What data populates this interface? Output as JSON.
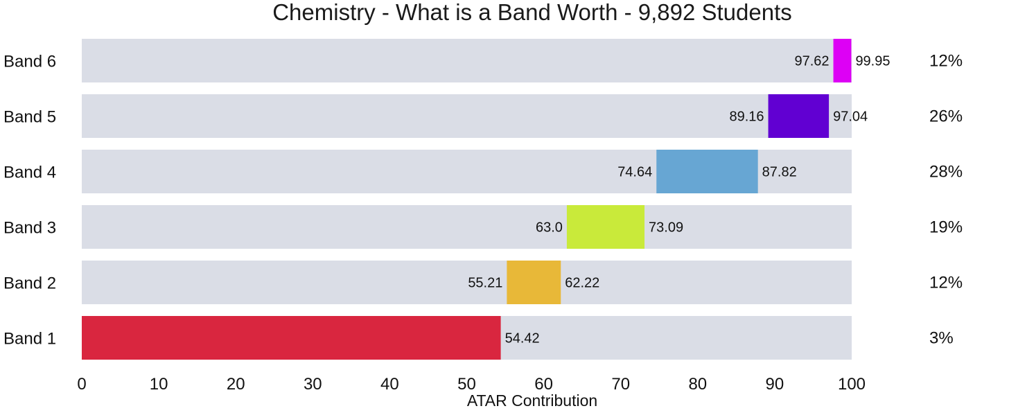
{
  "chart_data": {
    "type": "bar",
    "title": "Chemistry - What is a Band Worth - 9,892 Students",
    "xlabel": "ATAR Contribution",
    "ylabel": "",
    "xlim": [
      0,
      100
    ],
    "x_ticks": [
      "0",
      "10",
      "20",
      "30",
      "40",
      "50",
      "60",
      "70",
      "80",
      "90",
      "100"
    ],
    "grid": false,
    "legend": "none",
    "track_color": "#dadde6",
    "categories": [
      "Band 6",
      "Band 5",
      "Band 4",
      "Band 3",
      "Band 2",
      "Band 1"
    ],
    "bands": [
      {
        "name": "Band 6",
        "start": 97.62,
        "end": 99.95,
        "start_label": "97.62",
        "end_label": "99.95",
        "percent": "12%",
        "color": "#dd00f5"
      },
      {
        "name": "Band 5",
        "start": 89.16,
        "end": 97.04,
        "start_label": "89.16",
        "end_label": "97.04",
        "percent": "26%",
        "color": "#6100d2"
      },
      {
        "name": "Band 4",
        "start": 74.64,
        "end": 87.82,
        "start_label": "74.64",
        "end_label": "87.82",
        "percent": "28%",
        "color": "#67a6d3"
      },
      {
        "name": "Band 3",
        "start": 63.0,
        "end": 73.09,
        "start_label": "63.0",
        "end_label": "73.09",
        "percent": "19%",
        "color": "#c9ea3a"
      },
      {
        "name": "Band 2",
        "start": 55.21,
        "end": 62.22,
        "start_label": "55.21",
        "end_label": "62.22",
        "percent": "12%",
        "color": "#e8b838"
      },
      {
        "name": "Band 1",
        "start": 0,
        "end": 54.42,
        "start_label": "",
        "end_label": "54.42",
        "percent": "3%",
        "color": "#d9263f"
      }
    ]
  }
}
